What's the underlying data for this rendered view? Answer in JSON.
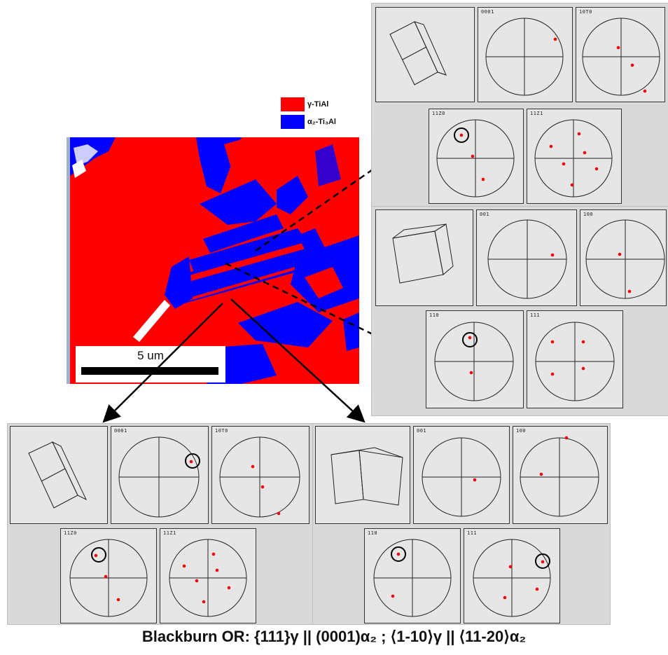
{
  "legend": [
    {
      "label": "γ-TiAl",
      "color": "#ff0000"
    },
    {
      "label": "α₂-Ti₃Al",
      "color": "#0000ff"
    }
  ],
  "scalebar": {
    "label": "5 um"
  },
  "caption": "Blackburn OR: {111}γ || (0001)α₂ ; ⟨1-10⟩γ || ⟨11-20⟩α₂",
  "colors": {
    "gamma": "#ff0000",
    "alpha2": "#0000ff",
    "marker": "#ff0000",
    "panel": "#e6e6e6"
  },
  "pole_labels": {
    "top_right_alpha": [
      "0001",
      "10T0",
      "11Z0",
      "11Z1"
    ],
    "right_gamma": [
      "001",
      "100",
      "110",
      "111"
    ],
    "bottom_left_alpha": [
      "0001",
      "10T0",
      "11Z0",
      "11Z1"
    ],
    "bottom_right_gamma": [
      "001",
      "100",
      "110",
      "111"
    ]
  }
}
